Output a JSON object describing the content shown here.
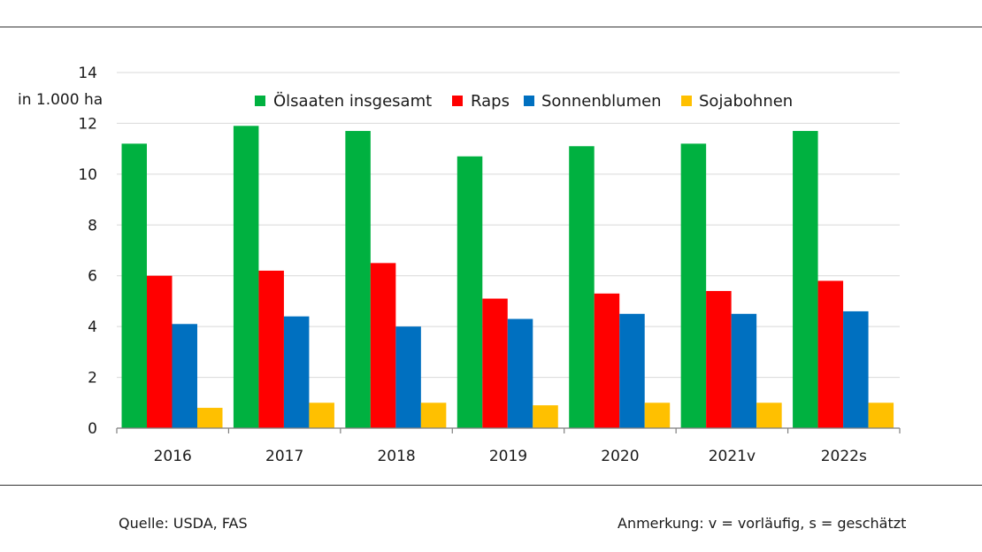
{
  "chart_data": {
    "type": "bar",
    "ylabel": "in 1.000 ha",
    "ylim": [
      0,
      14
    ],
    "yticks": [
      0,
      2,
      4,
      6,
      8,
      10,
      12,
      14
    ],
    "categories": [
      "2016",
      "2017",
      "2018",
      "2019",
      "2020",
      "2021v",
      "2022s"
    ],
    "legend_position": "top",
    "grid": true,
    "series": [
      {
        "name": "Ölsaaten insgesamt",
        "color": "#00b140",
        "values": [
          11.2,
          11.9,
          11.7,
          10.7,
          11.1,
          11.2,
          11.7
        ]
      },
      {
        "name": "Raps",
        "color": "#ff0000",
        "values": [
          6.0,
          6.2,
          6.5,
          5.1,
          5.3,
          5.4,
          5.8
        ]
      },
      {
        "name": "Sonnenblumen",
        "color": "#0070c0",
        "values": [
          4.1,
          4.4,
          4.0,
          4.3,
          4.5,
          4.5,
          4.6
        ]
      },
      {
        "name": "Sojabohnen",
        "color": "#ffc000",
        "values": [
          0.8,
          1.0,
          1.0,
          0.9,
          1.0,
          1.0,
          1.0
        ]
      }
    ]
  },
  "footer": {
    "source": "Quelle: USDA, FAS",
    "note": "Anmerkung: v = vorläufig, s = geschätzt"
  }
}
